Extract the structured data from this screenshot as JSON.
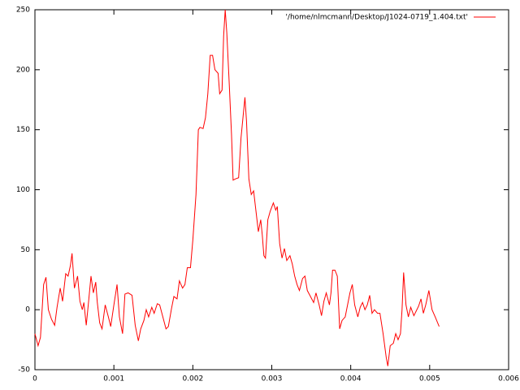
{
  "chart_data": {
    "type": "line",
    "xlim": [
      0,
      0.006
    ],
    "ylim": [
      -50,
      250
    ],
    "xticks": [
      0,
      0.001,
      0.002,
      0.003,
      0.004,
      0.005,
      0.006
    ],
    "yticks": [
      -50,
      0,
      50,
      100,
      150,
      200,
      250
    ],
    "grid": false,
    "legend": "top-right",
    "series": [
      {
        "name": "'/home/nlmcmann/Desktop/J1024-0719_1.404.txt'",
        "color": "#ff0000",
        "x": [
          0,
          4e-05,
          7e-05,
          0.00011,
          0.00014,
          0.00017,
          0.00021,
          0.00025,
          0.00028,
          0.00032,
          0.00035,
          0.00039,
          0.00042,
          0.00045,
          0.00047,
          0.0005,
          0.00054,
          0.00057,
          0.0006,
          0.00062,
          0.00065,
          0.00068,
          0.00071,
          0.00074,
          0.00077,
          0.00079,
          0.00082,
          0.00085,
          0.00089,
          0.00093,
          0.00096,
          0.001,
          0.00104,
          0.00107,
          0.00111,
          0.00114,
          0.00118,
          0.00123,
          0.00127,
          0.00131,
          0.00134,
          0.00138,
          0.00141,
          0.00144,
          0.00148,
          0.00151,
          0.00155,
          0.00158,
          0.00162,
          0.00166,
          0.00169,
          0.00173,
          0.00176,
          0.0018,
          0.00183,
          0.00187,
          0.0019,
          0.00193,
          0.00197,
          0.002,
          0.00204,
          0.00207,
          0.00209,
          0.00213,
          0.00216,
          0.00219,
          0.00222,
          0.00225,
          0.00228,
          0.00232,
          0.00234,
          0.00237,
          0.00239,
          0.00241,
          0.00243,
          0.00246,
          0.00249,
          0.00251,
          0.00254,
          0.00258,
          0.00261,
          0.00266,
          0.00268,
          0.00271,
          0.00274,
          0.00277,
          0.0028,
          0.00283,
          0.00286,
          0.00288,
          0.0029,
          0.00292,
          0.00295,
          0.00298,
          0.00302,
          0.00305,
          0.00307,
          0.0031,
          0.00313,
          0.00316,
          0.00319,
          0.00323,
          0.00326,
          0.00329,
          0.00332,
          0.00335,
          0.00339,
          0.00342,
          0.00345,
          0.00349,
          0.00353,
          0.00356,
          0.0036,
          0.00363,
          0.00366,
          0.00369,
          0.00373,
          0.00375,
          0.00377,
          0.0038,
          0.00383,
          0.00386,
          0.00389,
          0.00393,
          0.00396,
          0.00399,
          0.00402,
          0.00405,
          0.00409,
          0.00412,
          0.00415,
          0.00418,
          0.00421,
          0.00424,
          0.00427,
          0.0043,
          0.00434,
          0.00437,
          0.00441,
          0.00445,
          0.00447,
          0.0045,
          0.00454,
          0.00457,
          0.0046,
          0.00463,
          0.00465,
          0.00467,
          0.0047,
          0.00473,
          0.00476,
          0.0048,
          0.00483,
          0.00486,
          0.00489,
          0.00492,
          0.00495,
          0.00499,
          0.00503,
          0.00507,
          0.00512
        ],
        "values": [
          -20,
          -30,
          -23,
          21,
          27,
          0,
          -8,
          -13,
          2,
          18,
          7,
          30,
          28,
          37,
          47,
          18,
          28,
          7,
          0,
          6,
          -13,
          7,
          28,
          14,
          23,
          6,
          -11,
          -16,
          4,
          -6,
          -14,
          4,
          21,
          -6,
          -20,
          13,
          14,
          12,
          -13,
          -26,
          -16,
          -9,
          0,
          -6,
          2,
          -3,
          5,
          4,
          -6,
          -16,
          -14,
          1,
          11,
          9,
          24,
          18,
          21,
          35,
          35,
          58,
          96,
          150,
          152,
          151,
          160,
          180,
          212,
          212,
          200,
          197,
          180,
          183,
          228,
          250,
          231,
          190,
          146,
          108,
          109,
          110,
          143,
          177,
          157,
          109,
          96,
          99,
          82,
          65,
          75,
          62,
          45,
          43,
          75,
          82,
          89,
          83,
          86,
          55,
          43,
          51,
          41,
          45,
          38,
          28,
          21,
          16,
          26,
          28,
          16,
          11,
          6,
          14,
          4,
          -5,
          7,
          14,
          4,
          14,
          33,
          33,
          28,
          -16,
          -9,
          -6,
          4,
          14,
          21,
          4,
          -6,
          2,
          6,
          0,
          4,
          12,
          -3,
          0,
          -3,
          -3,
          -20,
          -40,
          -47,
          -30,
          -28,
          -20,
          -25,
          -20,
          0,
          31,
          4,
          -6,
          2,
          -5,
          -1,
          3,
          9,
          -3,
          4,
          16,
          0,
          -6,
          -14
        ]
      }
    ]
  }
}
